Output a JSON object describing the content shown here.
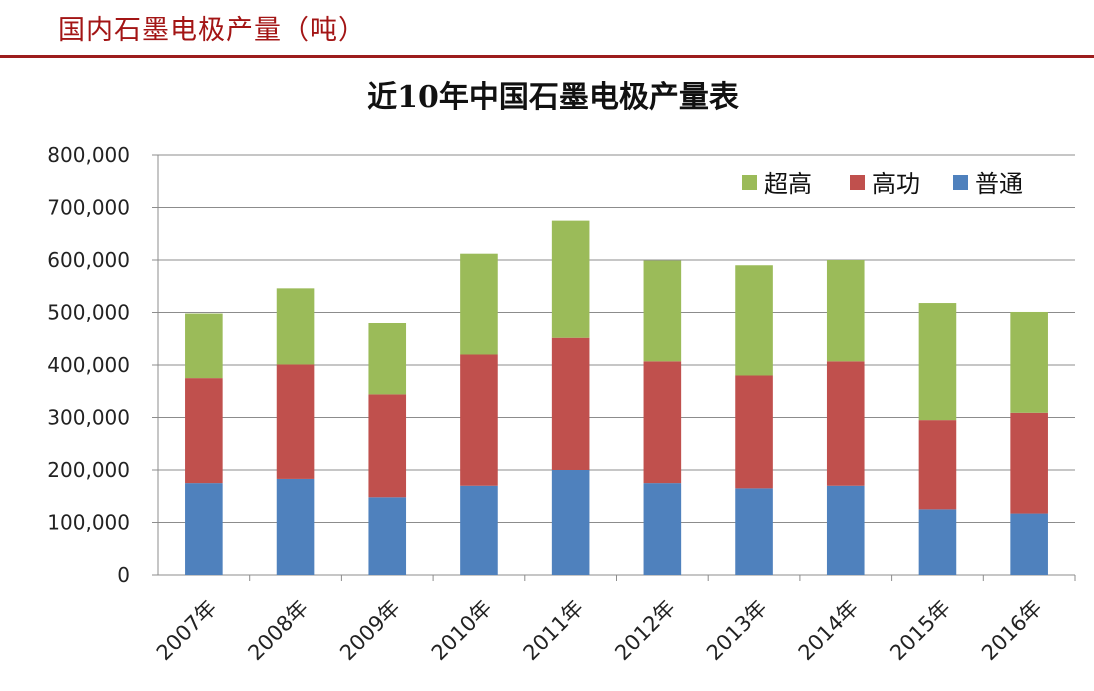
{
  "header": {
    "title": "国内石墨电极产量（吨）"
  },
  "colors": {
    "header_text": "#a31515",
    "rule": "#9c1c1c",
    "ultra": "#9bbb59",
    "high": "#c0504d",
    "regular": "#4f81bd",
    "grid": "#8c8c8c"
  },
  "chart_data": {
    "type": "bar",
    "stacked": true,
    "title": "近10年中国石墨电极产量表",
    "categories": [
      "2007年",
      "2008年",
      "2009年",
      "2010年",
      "2011年",
      "2012年",
      "2013年",
      "2014年",
      "2015年",
      "2016年"
    ],
    "series": [
      {
        "name": "普通",
        "color": "#4f81bd",
        "values": [
          175000,
          183000,
          148000,
          170000,
          200000,
          175000,
          165000,
          170000,
          125000,
          117000
        ]
      },
      {
        "name": "高功",
        "color": "#c0504d",
        "values": [
          200000,
          218000,
          196000,
          250000,
          252000,
          232000,
          215000,
          237000,
          170000,
          192000
        ]
      },
      {
        "name": "超高",
        "color": "#9bbb59",
        "values": [
          123000,
          145000,
          136000,
          192000,
          223000,
          192000,
          210000,
          193000,
          223000,
          192000
        ]
      }
    ],
    "yticks": [
      "0",
      "100,000",
      "200,000",
      "300,000",
      "400,000",
      "500,000",
      "600,000",
      "700,000",
      "800,000"
    ],
    "ylim": [
      0,
      800000
    ],
    "grid": true,
    "legend": {
      "position": "top-right",
      "items": [
        "超高",
        "高功",
        "普通"
      ]
    }
  }
}
